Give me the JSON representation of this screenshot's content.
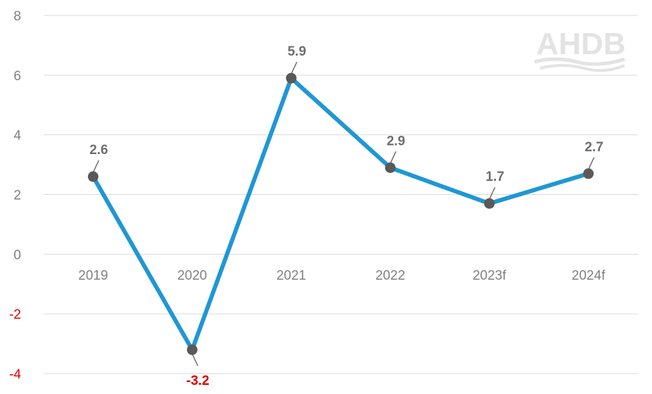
{
  "chart_data": {
    "type": "line",
    "categories": [
      "2019",
      "2020",
      "2021",
      "2022",
      "2023f",
      "2024f"
    ],
    "series": [
      {
        "values": [
          2.6,
          -3.2,
          5.9,
          2.9,
          1.7,
          2.7
        ]
      }
    ],
    "data_labels": [
      "2.6",
      "-3.2",
      "5.9",
      "2.9",
      "1.7",
      "2.7"
    ],
    "yticks": [
      8,
      6,
      4,
      2,
      0,
      -2,
      -4
    ],
    "ylim": [
      -4,
      8
    ],
    "grid": true,
    "line_color": "#1f97d4",
    "marker_color": "#595959",
    "negative_color": "#e00000",
    "logo": "AHDB"
  }
}
